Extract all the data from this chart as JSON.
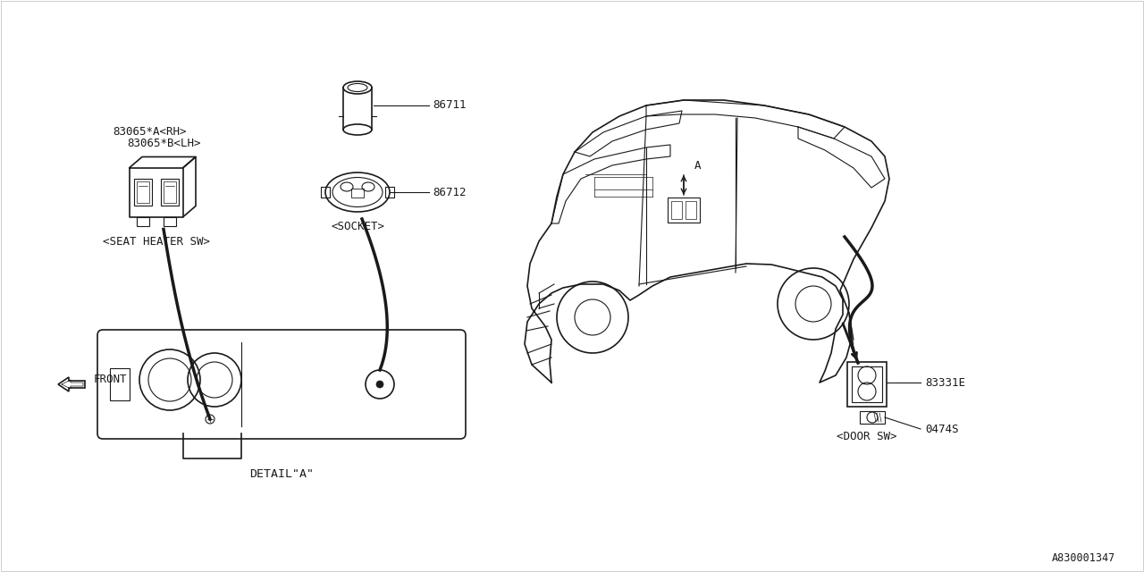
{
  "bg_color": "#ffffff",
  "line_color": "#1a1a1a",
  "diagram_id": "A830001347",
  "parts": {
    "label_rh": "83065*A<RH>",
    "label_lh": "83065*B<LH>",
    "socket_label": "<SOCKET>",
    "seat_heater_label": "<SEAT HEATER SW>",
    "detail_label": "DETAIL\"A\"",
    "front_label": "FRONT",
    "door_sw_label": "<DOOR SW>",
    "part_86711": "86711",
    "part_86712": "86712",
    "part_83331E": "83331E",
    "part_0474S": "0474S",
    "label_A": "A"
  }
}
